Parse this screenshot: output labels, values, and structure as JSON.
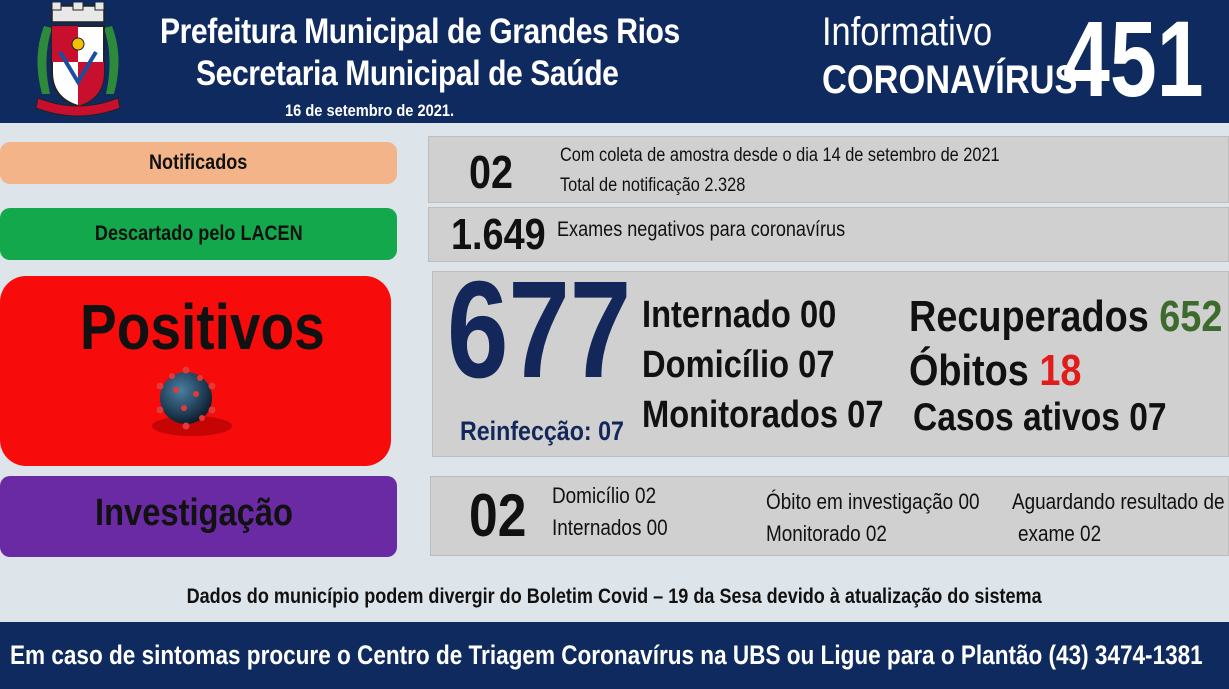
{
  "header": {
    "title_line1": "Prefeitura Municipal de Grandes Rios",
    "title_line2": "Secretaria Municipal de Saúde",
    "date": "16 de setembro  de 2021.",
    "informativo_label": "Informativo",
    "coronavirus_label": "CORONAVÍRUS",
    "bulletin_number": "451"
  },
  "notificados": {
    "label": "Notificados",
    "count": "02",
    "line1": "Com coleta de amostra desde o dia 14 de setembro de 2021",
    "line2": "Total de notificação  2.328"
  },
  "descartados": {
    "label": "Descartado  pelo LACEN",
    "count": "1.649",
    "text": "Exames negativos  para coronavírus"
  },
  "positivos": {
    "label": "Positivos",
    "count": "677",
    "reinfeccao": "Reinfecção:  07",
    "internado": "Internado 00",
    "domicilio": "Domicílio 07",
    "monitorados": "Monitorados 07",
    "recuperados_label": "Recuperados",
    "recuperados_value": "652",
    "obitos_label": "Óbitos",
    "obitos_value": "18",
    "casos_ativos": "Casos ativos 07"
  },
  "investigacao": {
    "label": "Investigação",
    "count": "02",
    "domicilio": "Domicílio 02",
    "internados": "Internados 00",
    "obito": "Óbito  em investigação  00",
    "monitorado": "Monitorado  02",
    "aguardando_line1": "Aguardando resultado de",
    "aguardando_line2": "exame 02"
  },
  "footer": {
    "note": "Dados do município  podem  divergir do Boletim  Covid – 19 da Sesa devido à atualização  do sistema",
    "contact": "Em caso de sintomas  procure  o Centro de Triagem  Coronavírus  na UBS ou Ligue  para o Plantão  (43) 3474-1381"
  },
  "colors": {
    "header_bg": "#0f2a5f",
    "notificados": "#f3b48a",
    "descartados": "#14a84d",
    "positivos": "#f80b0b",
    "investigacao": "#6a2aa3",
    "recuperados": "#3d6b2e",
    "obitos": "#e21b1b",
    "main_number": "#13275a"
  }
}
